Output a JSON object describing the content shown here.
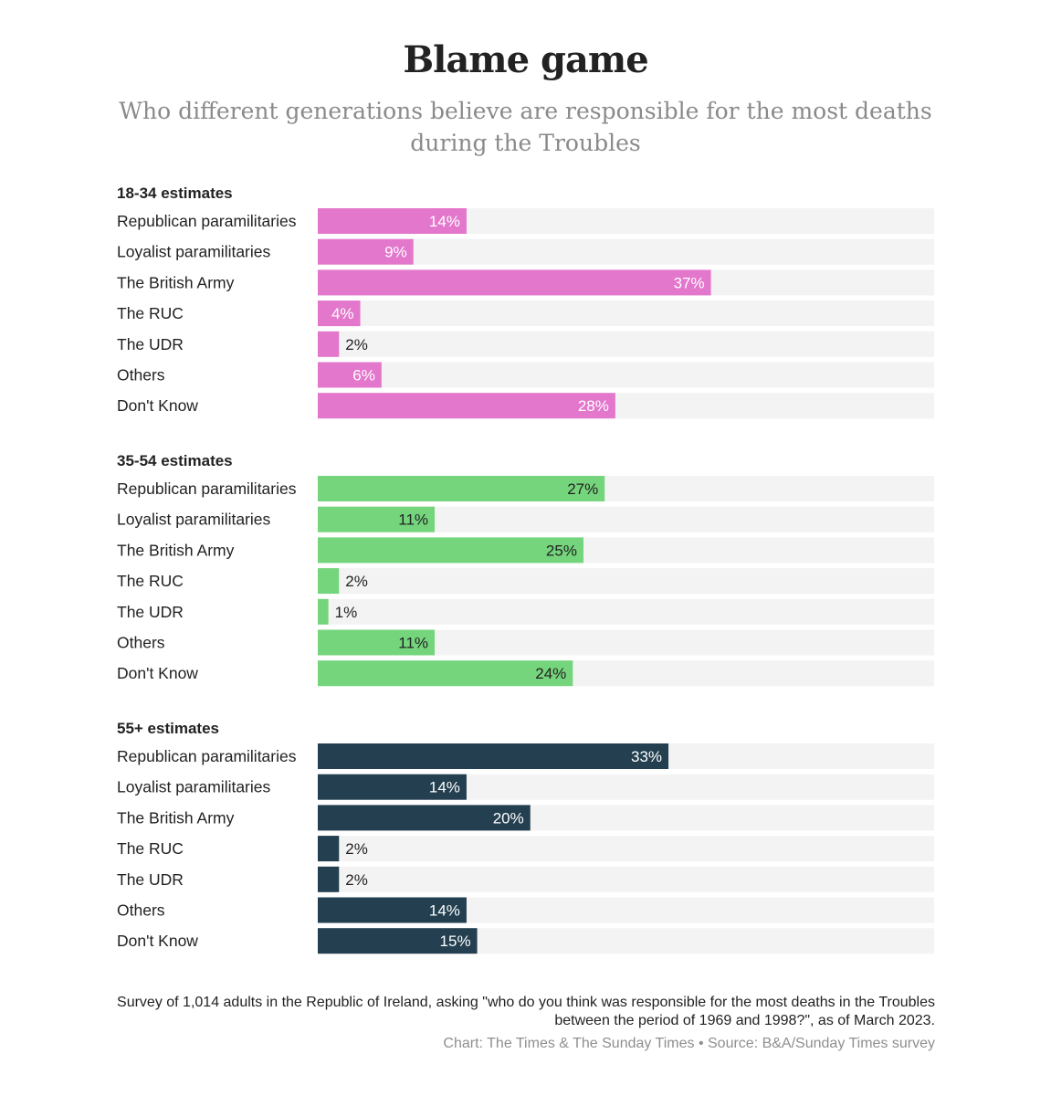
{
  "title": "Blame game",
  "subtitle": "Who different generations believe are responsible for the most deaths during the Troubles",
  "footnote": "Survey of 1,014 adults in the Republic of Ireland, asking \"who do you think was responsible for the most deaths in the Troubles between the period of 1969 and 1998?\", as of March 2023.",
  "credit": "Chart: The Times & The Sunday Times • Source: B&A/Sunday Times survey",
  "chart_data": [
    {
      "type": "bar",
      "title": "18-34 estimates",
      "categories": [
        "Republican paramilitaries",
        "Loyalist paramilitaries",
        "The British Army",
        "The RUC",
        "The UDR",
        "Others",
        "Don't Know"
      ],
      "values": [
        14,
        9,
        37,
        4,
        2,
        6,
        28
      ],
      "value_labels": [
        "14%",
        "9%",
        "37%",
        "4%",
        "2%",
        "6%",
        "28%"
      ],
      "xlim": [
        0,
        58
      ],
      "color": "#e377cc",
      "label_color": "#ffffff",
      "track_color": "#f3f3f3"
    },
    {
      "type": "bar",
      "title": "35-54 estimates",
      "categories": [
        "Republican paramilitaries",
        "Loyalist paramilitaries",
        "The British Army",
        "The RUC",
        "The UDR",
        "Others",
        "Don't Know"
      ],
      "values": [
        27,
        11,
        25,
        2,
        1,
        11,
        24
      ],
      "value_labels": [
        "27%",
        "11%",
        "25%",
        "2%",
        "1%",
        "11%",
        "24%"
      ],
      "xlim": [
        0,
        58
      ],
      "color": "#75d57c",
      "label_color": "#222222",
      "track_color": "#f3f3f3"
    },
    {
      "type": "bar",
      "title": "55+ estimates",
      "categories": [
        "Republican paramilitaries",
        "Loyalist paramilitaries",
        "The British Army",
        "The RUC",
        "The UDR",
        "Others",
        "Don't Know"
      ],
      "values": [
        33,
        14,
        20,
        2,
        2,
        14,
        15
      ],
      "value_labels": [
        "33%",
        "14%",
        "20%",
        "2%",
        "2%",
        "14%",
        "15%"
      ],
      "xlim": [
        0,
        58
      ],
      "color": "#233f50",
      "label_color": "#ffffff",
      "track_color": "#f3f3f3"
    }
  ]
}
